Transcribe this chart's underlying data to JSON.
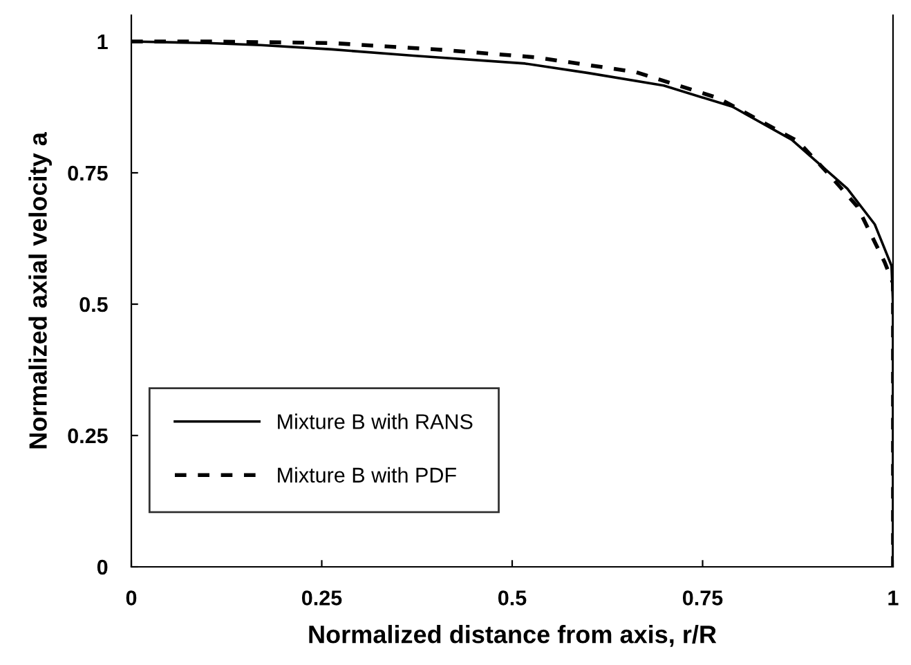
{
  "chart_data": {
    "type": "line",
    "xlabel": "Normalized distance from axis, r/R",
    "ylabel": "Normalized axial velocity a",
    "xlim": [
      0,
      1
    ],
    "ylim": [
      0,
      1.05
    ],
    "xticks": [
      0,
      0.25,
      0.5,
      0.75,
      1
    ],
    "yticks": [
      0,
      0.25,
      0.5,
      0.75,
      1
    ],
    "grid": false,
    "legend": "bottom left",
    "series": [
      {
        "name": "Mixture B with RANS",
        "color": "#000000",
        "line_style": "solid",
        "x": [
          0,
          0.1,
          0.17,
          0.263,
          0.37,
          0.517,
          0.6,
          0.699,
          0.789,
          0.867,
          0.94,
          0.976,
          0.998,
          1,
          1
        ],
        "values": [
          1,
          0.997,
          0.993,
          0.985,
          0.973,
          0.958,
          0.94,
          0.916,
          0.876,
          0.813,
          0.72,
          0.652,
          0.573,
          0.5,
          0
        ]
      },
      {
        "name": "Mixture B with PDF",
        "color": "#000000",
        "line_style": "dashed",
        "x": [
          0,
          0.1,
          0.263,
          0.4,
          0.53,
          0.662,
          0.771,
          0.875,
          0.916,
          0.953,
          0.989,
          1,
          1
        ],
        "values": [
          1,
          1,
          0.997,
          0.985,
          0.97,
          0.942,
          0.892,
          0.81,
          0.747,
          0.686,
          0.58,
          0.54,
          0
        ]
      }
    ]
  }
}
